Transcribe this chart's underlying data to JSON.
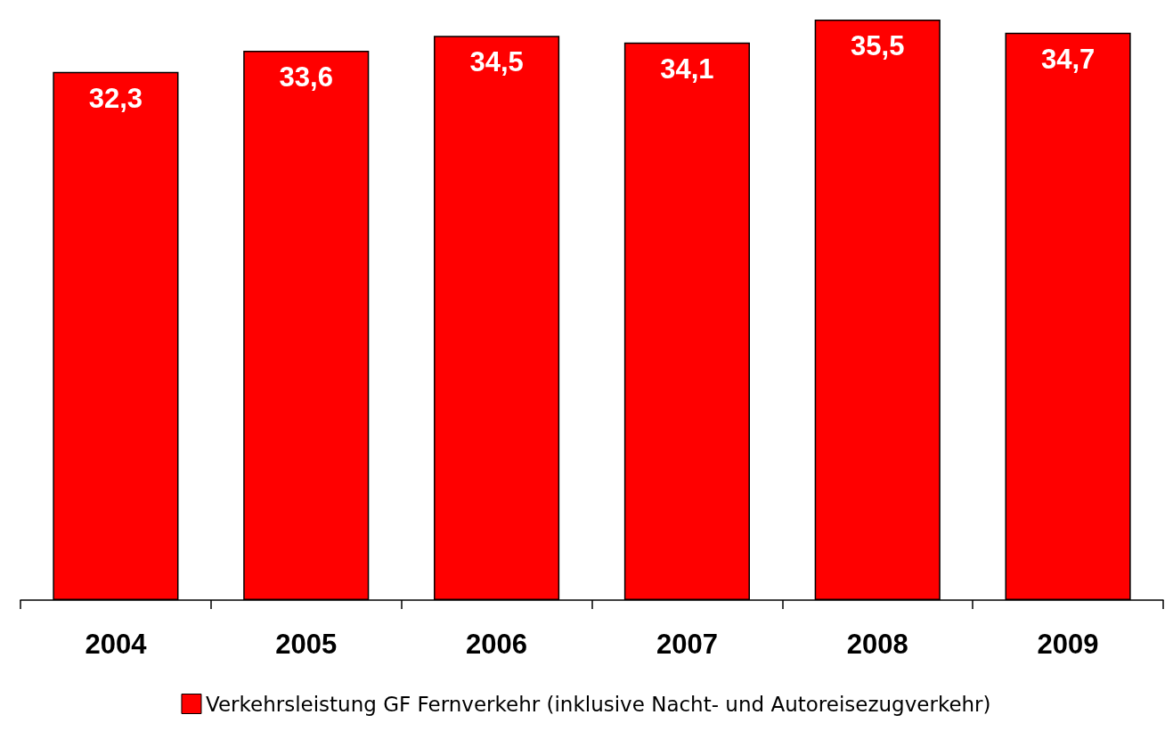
{
  "chart_data": {
    "type": "bar",
    "categories": [
      "2004",
      "2005",
      "2006",
      "2007",
      "2008",
      "2009"
    ],
    "series": [
      {
        "name": "Verkehrsleistung GF Fernverkehr (inklusive Nacht- und Autoreisezugverkehr)",
        "color": "#ff0000",
        "values": [
          32.3,
          33.6,
          34.5,
          34.1,
          35.5,
          34.7
        ],
        "value_labels": [
          "32,3",
          "33,6",
          "34,5",
          "34,1",
          "35,5",
          "34,7"
        ]
      }
    ],
    "legend": "bottom",
    "grid": false
  }
}
